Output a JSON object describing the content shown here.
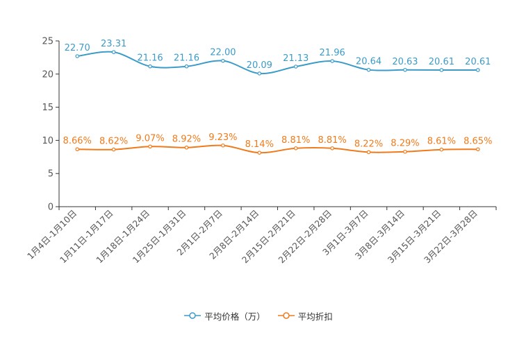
{
  "chart_data": {
    "type": "line",
    "categories": [
      "1月4日-1月10日",
      "1月11日-1月17日",
      "1月18日-1月24日",
      "1月25日-1月31日",
      "2月1日-2月7日",
      "2月8日-2月14日",
      "2月15日-2月21日",
      "2月22日-2月28日",
      "3月1日-3月7日",
      "3月8日-3月14日",
      "3月15日-3月21日",
      "3月22日-3月28日"
    ],
    "series": [
      {
        "name": "平均价格（万）",
        "color": "#3a9bc9",
        "values": [
          22.7,
          23.31,
          21.16,
          21.16,
          22.0,
          20.09,
          21.13,
          21.96,
          20.64,
          20.63,
          20.61,
          20.61
        ],
        "labels": [
          "22.70",
          "23.31",
          "21.16",
          "21.16",
          "22.00",
          "20.09",
          "21.13",
          "21.96",
          "20.64",
          "20.63",
          "20.61",
          "20.61"
        ]
      },
      {
        "name": "平均折扣",
        "color": "#f07a1a",
        "values": [
          8.66,
          8.62,
          9.07,
          8.92,
          9.23,
          8.14,
          8.81,
          8.81,
          8.22,
          8.29,
          8.61,
          8.65
        ],
        "labels": [
          "8.66%",
          "8.62%",
          "9.07%",
          "8.92%",
          "9.23%",
          "8.14%",
          "8.81%",
          "8.81%",
          "8.22%",
          "8.29%",
          "8.61%",
          "8.65%"
        ]
      }
    ],
    "yticks": [
      0,
      5,
      10,
      15,
      20,
      25
    ],
    "ylim": [
      0,
      25
    ],
    "title": "",
    "xlabel": "",
    "ylabel": "",
    "grid": false,
    "legend_position": "bottom-center"
  }
}
